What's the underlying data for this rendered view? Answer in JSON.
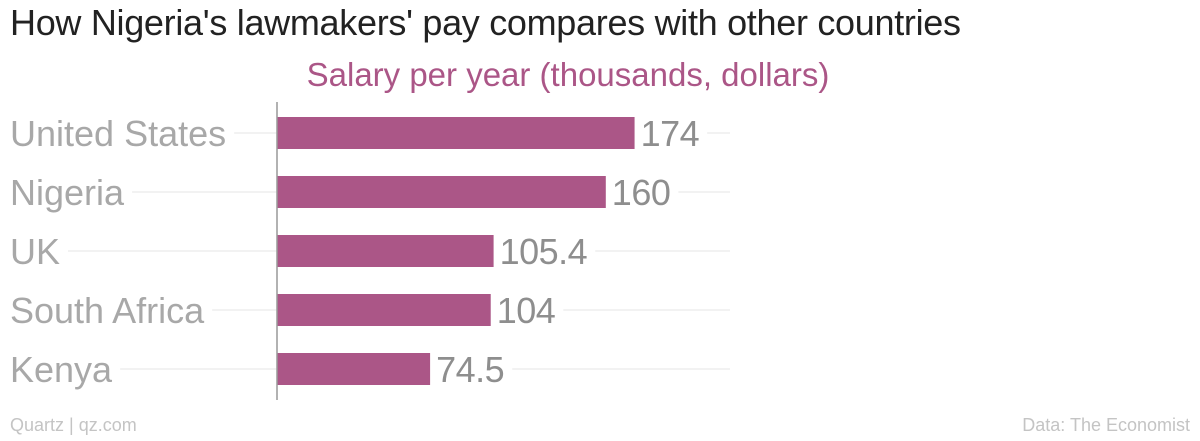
{
  "title": "How Nigeria's lawmakers' pay compares with other countries",
  "footer": {
    "source_left": "Quartz | qz.com",
    "source_right": "Data: The Economist"
  },
  "colors": {
    "bar": "#ab5687",
    "subtitle": "#ab5687",
    "gridline": "#e6e6e6",
    "axis": "#999999"
  },
  "chart_data": {
    "type": "bar",
    "orientation": "horizontal",
    "title": "How Nigeria's lawmakers' pay compares with other countries",
    "subtitle": "Salary per year (thousands, dollars)",
    "categories": [
      "United States",
      "Nigeria",
      "UK",
      "South Africa",
      "Kenya"
    ],
    "values": [
      174,
      160,
      105.4,
      104,
      74.5
    ],
    "value_labels": [
      "174",
      "160",
      "105.4",
      "104",
      "74.5"
    ],
    "xlim": [
      0,
      220
    ],
    "xlabel": "",
    "ylabel": "",
    "grid": true,
    "legend": "none"
  }
}
